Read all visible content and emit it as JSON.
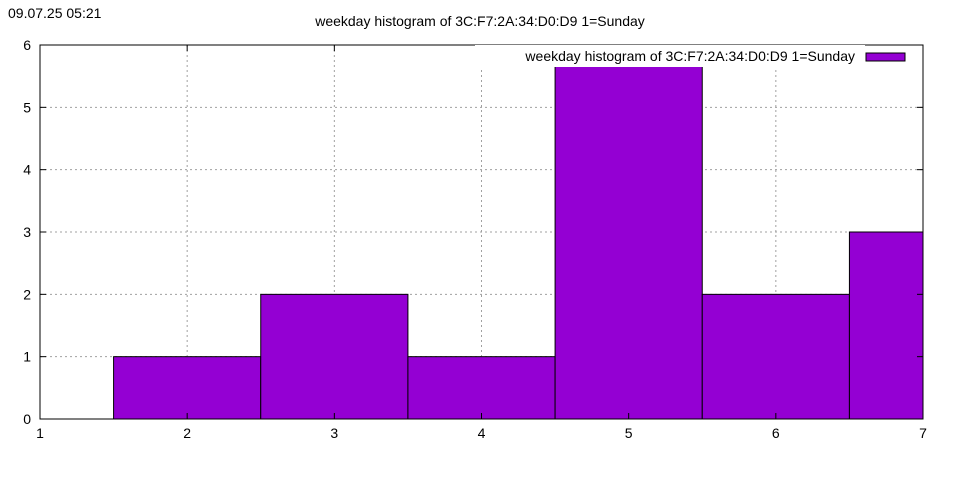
{
  "timestamp": "09.07.25 05:21",
  "colors": {
    "bar": "#9400d3",
    "bar_edge": "#000000",
    "grid": "#a0a0a0"
  },
  "chart_data": {
    "type": "bar",
    "title": "weekday histogram of 3C:F7:2A:34:D0:D9 1=Sunday",
    "xlabel": "",
    "ylabel": "",
    "xlim": [
      1,
      7
    ],
    "ylim": [
      0,
      6
    ],
    "xticks": [
      "1",
      "2",
      "3",
      "4",
      "5",
      "6",
      "7"
    ],
    "yticks": [
      "0",
      "1",
      "2",
      "3",
      "4",
      "5",
      "6"
    ],
    "grid": true,
    "legend_position": "top-right",
    "series": [
      {
        "name": "weekday histogram of 3C:F7:2A:34:D0:D9 1=Sunday",
        "categories": [
          2,
          3,
          4,
          5,
          6,
          7
        ],
        "values": [
          1,
          2,
          1,
          6,
          2,
          3
        ]
      }
    ]
  }
}
